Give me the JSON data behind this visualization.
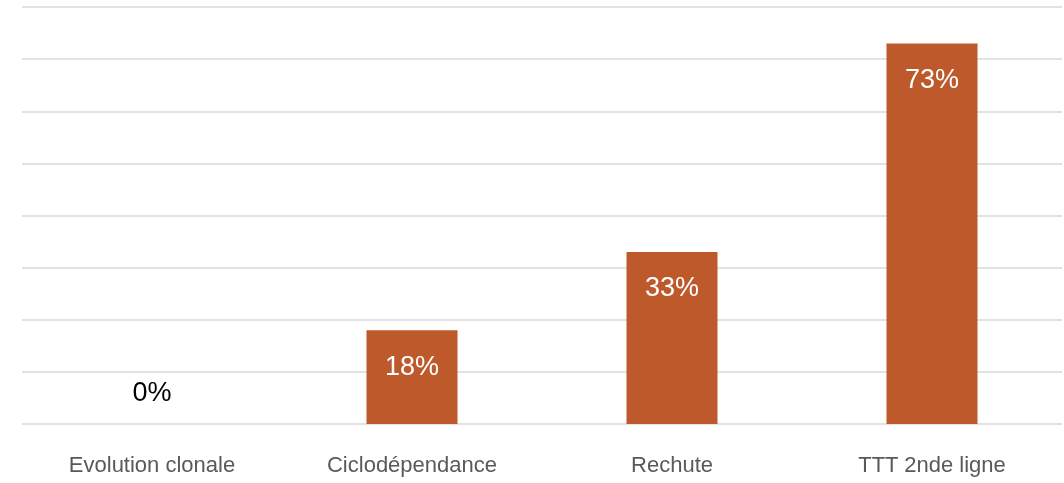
{
  "chart_data": {
    "type": "bar",
    "categories": [
      "Evolution clonale",
      "Ciclodépendance",
      "Rechute",
      "TTT 2nde ligne"
    ],
    "values": [
      0,
      18,
      33,
      73
    ],
    "color": "#bd592b",
    "value_labels": [
      "0%",
      "18%",
      "33%",
      "73%"
    ],
    "ylim": [
      0,
      80
    ],
    "yticks": [
      0,
      10,
      20,
      30,
      40,
      50,
      60,
      70,
      80
    ],
    "grid": "y",
    "tick_labels": "x"
  }
}
